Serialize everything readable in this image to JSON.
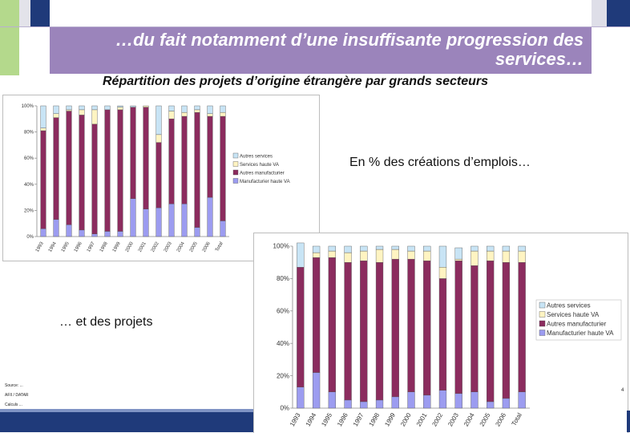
{
  "slide": {
    "title": "…du fait notamment d’une insuffisante progression des services…",
    "subtitle": "Répartition des projets d’origine étrangère par grands secteurs",
    "note_right": "En % des créations d’emplois…",
    "note_left": "… et des projets",
    "source_lines": [
      "Source: ...",
      "AFII / DATAR",
      "Calculs ..."
    ],
    "page_marker": "4",
    "colors": {
      "band": "#9b84bb",
      "accent_blue": "#1f3a7a",
      "accent_green": "#b4d98c"
    }
  },
  "chart_data": [
    {
      "type": "bar",
      "stacked": true,
      "title": "",
      "categories": [
        "1993",
        "1994",
        "1995",
        "1996",
        "1997",
        "1998",
        "1999",
        "2000",
        "2001",
        "2002",
        "2003",
        "2004",
        "2005",
        "2006",
        "Total"
      ],
      "series": [
        {
          "name": "Autres services",
          "color": "#c8e4f5",
          "values": [
            17,
            6,
            3,
            3,
            3,
            3,
            1,
            1,
            0,
            22,
            4,
            5,
            3,
            6,
            5
          ]
        },
        {
          "name": "Services haute VA",
          "color": "#fff4c2",
          "values": [
            2,
            3,
            1,
            4,
            11,
            0,
            2,
            0,
            1,
            6,
            6,
            3,
            2,
            2,
            3
          ]
        },
        {
          "name": "Autres manufacturier",
          "color": "#8b2c5e",
          "values": [
            75,
            78,
            87,
            88,
            84,
            93,
            93,
            70,
            78,
            50,
            65,
            67,
            88,
            62,
            80
          ]
        },
        {
          "name": "Manufacturier haute VA",
          "color": "#9c9cf0",
          "values": [
            6,
            13,
            9,
            5,
            2,
            4,
            4,
            29,
            21,
            22,
            25,
            25,
            7,
            30,
            12
          ]
        }
      ],
      "ylim": [
        0,
        100
      ],
      "yticks": [
        "0%",
        "20%",
        "40%",
        "60%",
        "80%",
        "100%"
      ],
      "legend_position": "right"
    },
    {
      "type": "bar",
      "stacked": true,
      "title": "",
      "categories": [
        "1993",
        "1994",
        "1995",
        "1996",
        "1997",
        "1998",
        "1999",
        "2000",
        "2001",
        "2002",
        "2003",
        "2004",
        "2005",
        "2006",
        "Total"
      ],
      "series": [
        {
          "name": "Autres services",
          "color": "#c8e4f5",
          "values": [
            15,
            4,
            3,
            4,
            3,
            2,
            2,
            3,
            3,
            13,
            7,
            3,
            3,
            3,
            3
          ]
        },
        {
          "name": "Services haute VA",
          "color": "#fff4c2",
          "values": [
            0,
            3,
            4,
            6,
            6,
            8,
            6,
            5,
            6,
            7,
            1,
            9,
            6,
            7,
            7
          ]
        },
        {
          "name": "Autres manufacturier",
          "color": "#8b2c5e",
          "values": [
            74,
            71,
            83,
            85,
            87,
            85,
            85,
            82,
            83,
            69,
            82,
            78,
            87,
            84,
            80
          ]
        },
        {
          "name": "Manufacturier haute VA",
          "color": "#9c9cf0",
          "values": [
            13,
            22,
            10,
            5,
            4,
            5,
            7,
            10,
            8,
            11,
            9,
            10,
            4,
            6,
            10
          ]
        }
      ],
      "ylim": [
        0,
        100
      ],
      "yticks": [
        "0%",
        "20%",
        "40%",
        "60%",
        "80%",
        "100%"
      ],
      "legend_position": "right"
    }
  ]
}
